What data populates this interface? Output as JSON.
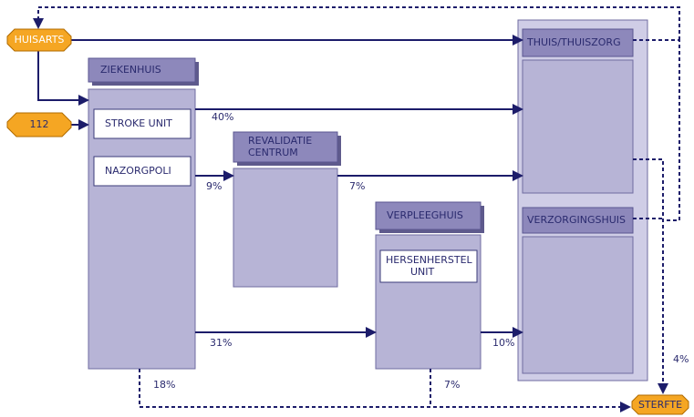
{
  "nodes": {
    "huisarts": "HUISARTS",
    "n112": "112",
    "ziekenhuis": "ZIEKENHUIS",
    "stroke_unit": "STROKE UNIT",
    "nazorgpoli": "NAZORGPOLI",
    "revalidatie": [
      "REVALIDATIE",
      "CENTRUM"
    ],
    "verpleeghuis": "VERPLEEGHUIS",
    "hersenherstel": [
      "HERSENHERSTEL",
      "UNIT"
    ],
    "thuis": "THUIS/THUISZORG",
    "verzorgingshuis": "VERZORGINGSHUIS",
    "sterfte": "STERFTE"
  },
  "edges": {
    "zh_thuis": "40%",
    "zh_reval": "9%",
    "reval_thuis": "7%",
    "zh_verpl": "31%",
    "verpl_verz": "10%",
    "zh_sterfte": "18%",
    "verpl_sterfte": "7%",
    "thuis_sterfte": "4%"
  }
}
